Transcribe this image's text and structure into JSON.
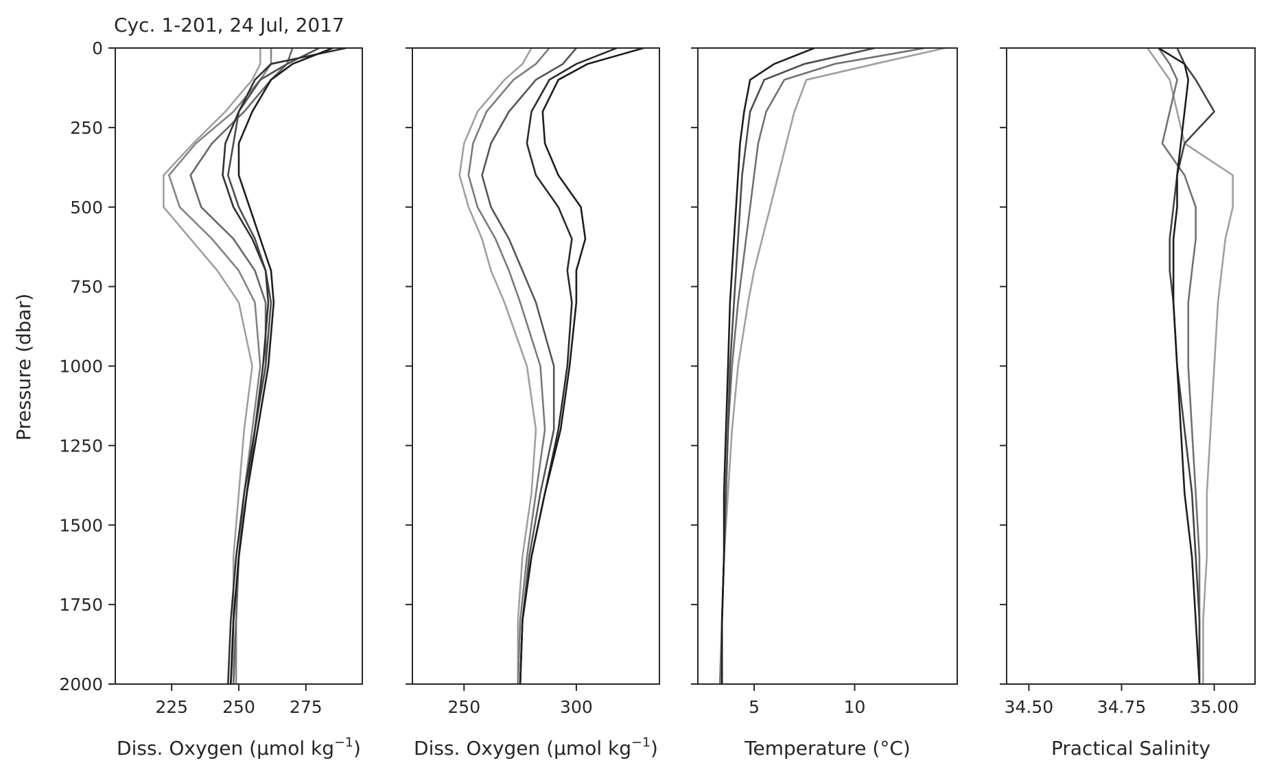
{
  "figure": {
    "title": "Cyc. 1-201, 24 Jul, 2017",
    "ylabel": "Pressure (dbar)"
  },
  "chart_data": [
    {
      "type": "line",
      "xlabel_main": "Diss. Oxygen (μmol kg",
      "xlabel_sup": "−1",
      "xlabel_end": ")",
      "xlim": [
        204,
        296
      ],
      "xticks": [
        225,
        250,
        275
      ],
      "xtick_labels": [
        "225",
        "250",
        "275"
      ],
      "ylabel": "Pressure (dbar)",
      "ylim": [
        2000,
        0
      ],
      "yticks": [
        0,
        250,
        500,
        750,
        1000,
        1250,
        1500,
        1750,
        2000
      ],
      "ytick_labels": [
        "0",
        "250",
        "500",
        "750",
        "1000",
        "1250",
        "1500",
        "1750",
        "2000"
      ],
      "color_encoding": "profile cycle 1 (light grey) to 201 (black)",
      "profiles": [
        {
          "p": [
            0,
            50,
            100,
            200,
            300,
            400,
            500,
            600,
            700,
            800,
            1000,
            1200,
            1400,
            1600,
            1800,
            2000
          ],
          "v": [
            258,
            258,
            255,
            245,
            233,
            222,
            222,
            232,
            242,
            250,
            255,
            252,
            250,
            248,
            248,
            248
          ],
          "shade": 0.75
        },
        {
          "p": [
            0,
            50,
            100,
            200,
            300,
            400,
            500,
            600,
            700,
            800,
            1000,
            1200,
            1400,
            1600,
            1800,
            2000
          ],
          "v": [
            262,
            262,
            258,
            248,
            234,
            224,
            228,
            240,
            250,
            256,
            258,
            255,
            252,
            250,
            249,
            249
          ],
          "shade": 0.6
        },
        {
          "p": [
            0,
            50,
            100,
            200,
            300,
            400,
            500,
            600,
            700,
            800,
            1000,
            1200,
            1400,
            1600,
            1800,
            2000
          ],
          "v": [
            270,
            268,
            262,
            252,
            240,
            232,
            236,
            248,
            256,
            260,
            260,
            256,
            253,
            250,
            249,
            248
          ],
          "shade": 0.45
        },
        {
          "p": [
            0,
            50,
            100,
            200,
            300,
            400,
            500,
            600,
            700,
            800,
            1000,
            1200,
            1400,
            1600,
            1800,
            2000
          ],
          "v": [
            280,
            268,
            258,
            250,
            248,
            246,
            250,
            256,
            260,
            262,
            260,
            256,
            253,
            250,
            248,
            247
          ],
          "shade": 0.3
        },
        {
          "p": [
            0,
            50,
            100,
            200,
            300,
            400,
            500,
            600,
            700,
            800,
            1000,
            1200,
            1400,
            1600,
            1800,
            2000
          ],
          "v": [
            290,
            262,
            256,
            250,
            245,
            244,
            248,
            255,
            260,
            261,
            259,
            256,
            252,
            249,
            247,
            246
          ],
          "shade": 0.15
        },
        {
          "p": [
            0,
            50,
            100,
            200,
            300,
            400,
            500,
            600,
            700,
            800,
            1000,
            1200,
            1400,
            1600,
            1800,
            2000
          ],
          "v": [
            285,
            270,
            262,
            255,
            250,
            250,
            254,
            258,
            262,
            263,
            261,
            257,
            253,
            250,
            248,
            247
          ],
          "shade": 0.05
        }
      ]
    },
    {
      "type": "line",
      "xlabel_main": "Diss. Oxygen (μmol kg",
      "xlabel_sup": "−1",
      "xlabel_end": ")",
      "xlim": [
        227,
        337
      ],
      "xticks": [
        250,
        300
      ],
      "xtick_labels": [
        "250",
        "300"
      ],
      "ylim": [
        2000,
        0
      ],
      "yticks": [
        0,
        250,
        500,
        750,
        1000,
        1250,
        1500,
        1750,
        2000
      ],
      "color_encoding": "profile cycle 1 (light grey) to 201 (black)",
      "profiles": [
        {
          "p": [
            0,
            50,
            100,
            200,
            300,
            400,
            500,
            600,
            700,
            800,
            1000,
            1200,
            1400,
            1600,
            1800,
            2000
          ],
          "v": [
            280,
            276,
            268,
            256,
            250,
            248,
            252,
            258,
            262,
            268,
            278,
            282,
            280,
            276,
            274,
            274
          ],
          "shade": 0.75
        },
        {
          "p": [
            0,
            50,
            100,
            200,
            300,
            400,
            500,
            600,
            700,
            800,
            1000,
            1200,
            1400,
            1600,
            1800,
            2000
          ],
          "v": [
            288,
            282,
            272,
            260,
            254,
            252,
            256,
            264,
            270,
            275,
            284,
            286,
            282,
            278,
            275,
            274
          ],
          "shade": 0.55
        },
        {
          "p": [
            0,
            50,
            100,
            200,
            300,
            400,
            500,
            600,
            700,
            800,
            1000,
            1200,
            1400,
            1600,
            1800,
            2000
          ],
          "v": [
            300,
            294,
            282,
            270,
            262,
            258,
            262,
            270,
            276,
            282,
            290,
            290,
            284,
            279,
            276,
            275
          ],
          "shade": 0.35
        },
        {
          "p": [
            0,
            50,
            100,
            200,
            300,
            400,
            500,
            600,
            700,
            800,
            1000,
            1200,
            1400,
            1600,
            1800,
            2000
          ],
          "v": [
            318,
            300,
            288,
            280,
            278,
            282,
            292,
            298,
            296,
            298,
            296,
            292,
            286,
            280,
            276,
            275
          ],
          "shade": 0.12
        },
        {
          "p": [
            0,
            50,
            100,
            200,
            300,
            400,
            500,
            600,
            700,
            800,
            1000,
            1200,
            1400,
            1600,
            1800,
            2000
          ],
          "v": [
            330,
            305,
            292,
            285,
            286,
            292,
            302,
            304,
            300,
            300,
            297,
            293,
            286,
            280,
            276,
            275
          ],
          "shade": 0.05
        }
      ]
    },
    {
      "type": "line",
      "xlabel_main": "Temperature (°C)",
      "xlim": [
        2.2,
        15.1
      ],
      "xticks": [
        5,
        10
      ],
      "xtick_labels": [
        "5",
        "10"
      ],
      "ylim": [
        2000,
        0
      ],
      "yticks": [
        0,
        250,
        500,
        750,
        1000,
        1250,
        1500,
        1750,
        2000
      ],
      "color_encoding": "profile cycle 1 (light grey) to 201 (black)",
      "profiles": [
        {
          "p": [
            0,
            50,
            100,
            200,
            300,
            400,
            500,
            600,
            700,
            800,
            1000,
            1200,
            1400,
            1600,
            1800,
            2000
          ],
          "v": [
            14.5,
            11.0,
            7.6,
            7.0,
            6.6,
            6.2,
            5.8,
            5.4,
            5.0,
            4.7,
            4.2,
            3.9,
            3.7,
            3.5,
            3.4,
            3.3
          ],
          "shade": 0.75
        },
        {
          "p": [
            0,
            50,
            100,
            200,
            300,
            400,
            500,
            600,
            700,
            800,
            1000,
            1200,
            1400,
            1600,
            1800,
            2000
          ],
          "v": [
            13.5,
            9.0,
            6.5,
            5.6,
            5.2,
            5.0,
            4.8,
            4.6,
            4.4,
            4.2,
            3.9,
            3.7,
            3.6,
            3.5,
            3.4,
            3.3
          ],
          "shade": 0.5
        },
        {
          "p": [
            0,
            50,
            100,
            200,
            300,
            400,
            500,
            600,
            700,
            800,
            1000,
            1200,
            1400,
            1600,
            1800,
            2000
          ],
          "v": [
            11.0,
            7.5,
            5.5,
            4.8,
            4.6,
            4.4,
            4.3,
            4.2,
            4.1,
            4.0,
            3.8,
            3.7,
            3.6,
            3.5,
            3.4,
            3.4
          ],
          "shade": 0.3
        },
        {
          "p": [
            0,
            50,
            100,
            200,
            300,
            400,
            500,
            600,
            700,
            800,
            1000,
            1200,
            1400,
            1600,
            1800,
            2000
          ],
          "v": [
            8.0,
            6.0,
            4.8,
            4.5,
            4.3,
            4.2,
            4.1,
            4.0,
            3.9,
            3.8,
            3.7,
            3.6,
            3.5,
            3.5,
            3.4,
            3.4
          ],
          "shade": 0.05
        }
      ]
    },
    {
      "type": "line",
      "xlabel_main": "Practical Salinity",
      "xlim": [
        34.44,
        35.11
      ],
      "xticks": [
        34.5,
        34.75,
        35.0
      ],
      "xtick_labels": [
        "34.50",
        "34.75",
        "35.00"
      ],
      "ylim": [
        2000,
        0
      ],
      "yticks": [
        0,
        250,
        500,
        750,
        1000,
        1250,
        1500,
        1750,
        2000
      ],
      "color_encoding": "profile cycle 1 (light grey) to 201 (black)",
      "profiles": [
        {
          "p": [
            0,
            50,
            100,
            200,
            300,
            400,
            500,
            600,
            700,
            800,
            1000,
            1200,
            1400,
            1600,
            1800,
            2000
          ],
          "v": [
            34.82,
            34.85,
            34.88,
            34.9,
            34.92,
            35.05,
            35.05,
            35.03,
            35.02,
            35.01,
            35.0,
            34.99,
            34.98,
            34.98,
            34.97,
            34.97
          ],
          "shade": 0.75
        },
        {
          "p": [
            0,
            50,
            100,
            200,
            300,
            400,
            500,
            600,
            700,
            800,
            1000,
            1200,
            1400,
            1600,
            1800,
            2000
          ],
          "v": [
            34.85,
            34.88,
            34.9,
            34.88,
            34.86,
            34.92,
            34.95,
            34.95,
            34.94,
            34.93,
            34.93,
            34.94,
            34.95,
            34.96,
            34.96,
            34.96
          ],
          "shade": 0.5
        },
        {
          "p": [
            0,
            50,
            100,
            200,
            300,
            400,
            500,
            600,
            700,
            800,
            1000,
            1200,
            1400,
            1600,
            1800,
            2000
          ],
          "v": [
            34.9,
            34.92,
            34.95,
            35.0,
            34.92,
            34.9,
            34.89,
            34.88,
            34.88,
            34.89,
            34.9,
            34.92,
            34.94,
            34.95,
            34.96,
            34.96
          ],
          "shade": 0.25
        },
        {
          "p": [
            0,
            50,
            100,
            200,
            300,
            400,
            500,
            600,
            700,
            800,
            1000,
            1200,
            1400,
            1600,
            1800,
            2000
          ],
          "v": [
            34.85,
            34.92,
            34.93,
            34.92,
            34.91,
            34.9,
            34.9,
            34.89,
            34.89,
            34.89,
            34.9,
            34.91,
            34.92,
            34.94,
            34.95,
            34.96
          ],
          "shade": 0.05
        }
      ]
    }
  ]
}
